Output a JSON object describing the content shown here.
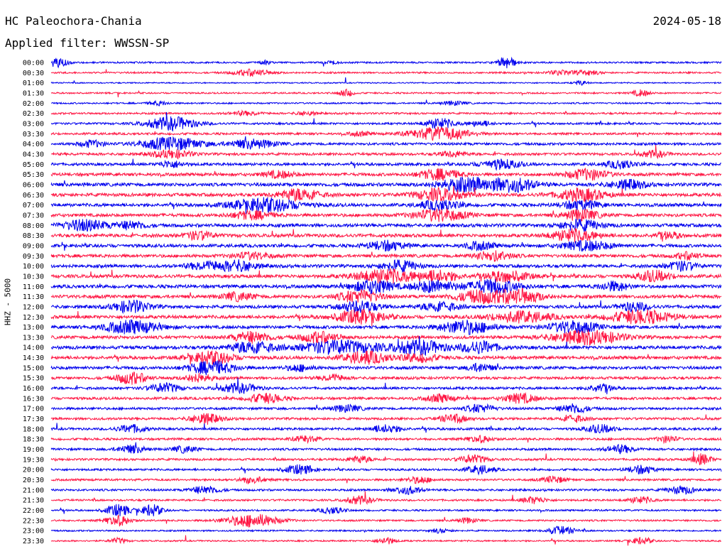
{
  "header": {
    "station": "HC Paleochora-Chania",
    "date": "2024-05-18",
    "filter_label": "Applied filter:",
    "filter_value": "WWSSN-SP"
  },
  "channel_label": "HHZ - 5000",
  "colors": {
    "odd_trace": "#0000ee",
    "even_trace": "#ff1744"
  },
  "chart_data": {
    "type": "line",
    "title": "HC Paleochora-Chania",
    "subtitle": "Applied filter: WWSSN-SP",
    "date": "2024-05-18",
    "ylabel": "HHZ - 5000",
    "xlabel": "",
    "legend": "none",
    "grid": false,
    "rows": [
      {
        "time": "00:00",
        "activity": 0.3,
        "events": [
          [
            0.01,
            0.7,
            10
          ],
          [
            0.68,
            1.0,
            8
          ],
          [
            0.32,
            0.3,
            5
          ],
          [
            0.42,
            0.3,
            5
          ]
        ]
      },
      {
        "time": "00:30",
        "activity": 0.3,
        "events": [
          [
            0.3,
            0.5,
            18
          ],
          [
            0.76,
            0.35,
            12
          ],
          [
            0.8,
            0.35,
            12
          ]
        ]
      },
      {
        "time": "01:00",
        "activity": 0.15,
        "events": [
          [
            0.79,
            0.35,
            6
          ]
        ]
      },
      {
        "time": "01:30",
        "activity": 0.25,
        "events": [
          [
            0.44,
            0.5,
            8
          ],
          [
            0.88,
            0.5,
            8
          ]
        ]
      },
      {
        "time": "02:00",
        "activity": 0.25,
        "events": [
          [
            0.16,
            0.3,
            10
          ],
          [
            0.6,
            0.3,
            12
          ]
        ]
      },
      {
        "time": "02:30",
        "activity": 0.35,
        "events": [
          [
            0.29,
            0.3,
            15
          ],
          [
            0.38,
            0.3,
            10
          ]
        ]
      },
      {
        "time": "03:00",
        "activity": 0.4,
        "events": [
          [
            0.18,
            1.0,
            25
          ],
          [
            0.58,
            0.8,
            14
          ],
          [
            0.64,
            0.4,
            12
          ]
        ]
      },
      {
        "time": "03:30",
        "activity": 0.45,
        "events": [
          [
            0.58,
            1.0,
            30
          ],
          [
            0.46,
            0.35,
            10
          ]
        ]
      },
      {
        "time": "04:00",
        "activity": 0.55,
        "events": [
          [
            0.18,
            1.0,
            30
          ],
          [
            0.3,
            0.7,
            22
          ],
          [
            0.06,
            0.5,
            12
          ]
        ]
      },
      {
        "time": "04:30",
        "activity": 0.55,
        "events": [
          [
            0.18,
            0.6,
            20
          ],
          [
            0.6,
            0.4,
            14
          ],
          [
            0.9,
            0.5,
            12
          ]
        ]
      },
      {
        "time": "05:00",
        "activity": 0.6,
        "events": [
          [
            0.67,
            0.7,
            20
          ],
          [
            0.85,
            0.6,
            14
          ],
          [
            0.18,
            0.5,
            12
          ]
        ]
      },
      {
        "time": "05:30",
        "activity": 0.7,
        "events": [
          [
            0.58,
            0.8,
            20
          ],
          [
            0.8,
            0.8,
            20
          ],
          [
            0.34,
            0.5,
            15
          ]
        ]
      },
      {
        "time": "06:00",
        "activity": 0.8,
        "events": [
          [
            0.62,
            1.0,
            28
          ],
          [
            0.69,
            1.0,
            22
          ],
          [
            0.86,
            0.7,
            18
          ]
        ]
      },
      {
        "time": "06:30",
        "activity": 0.8,
        "events": [
          [
            0.37,
            0.9,
            20
          ],
          [
            0.58,
            0.9,
            24
          ],
          [
            0.79,
            0.9,
            24
          ]
        ]
      },
      {
        "time": "07:00",
        "activity": 0.75,
        "events": [
          [
            0.32,
            1.0,
            35
          ],
          [
            0.58,
            0.7,
            20
          ],
          [
            0.79,
            0.7,
            18
          ]
        ]
      },
      {
        "time": "07:30",
        "activity": 0.75,
        "events": [
          [
            0.3,
            0.6,
            20
          ],
          [
            0.58,
            0.9,
            25
          ],
          [
            0.79,
            0.8,
            18
          ]
        ]
      },
      {
        "time": "08:00",
        "activity": 0.8,
        "events": [
          [
            0.05,
            0.8,
            22
          ],
          [
            0.12,
            0.6,
            14
          ],
          [
            0.79,
            0.8,
            20
          ]
        ]
      },
      {
        "time": "08:30",
        "activity": 0.8,
        "events": [
          [
            0.22,
            0.6,
            14
          ],
          [
            0.78,
            0.9,
            22
          ],
          [
            0.92,
            0.5,
            12
          ]
        ]
      },
      {
        "time": "09:00",
        "activity": 0.75,
        "events": [
          [
            0.5,
            0.7,
            18
          ],
          [
            0.64,
            0.6,
            14
          ],
          [
            0.8,
            0.7,
            24
          ]
        ]
      },
      {
        "time": "09:30",
        "activity": 0.75,
        "events": [
          [
            0.3,
            0.5,
            18
          ],
          [
            0.66,
            0.7,
            18
          ],
          [
            0.95,
            0.5,
            12
          ]
        ]
      },
      {
        "time": "10:00",
        "activity": 0.75,
        "events": [
          [
            0.23,
            0.6,
            18
          ],
          [
            0.28,
            0.8,
            18
          ],
          [
            0.52,
            0.8,
            18
          ],
          [
            0.94,
            0.7,
            14
          ]
        ]
      },
      {
        "time": "10:30",
        "activity": 0.8,
        "events": [
          [
            0.5,
            1.0,
            30
          ],
          [
            0.58,
            0.8,
            18
          ],
          [
            0.68,
            0.8,
            22
          ],
          [
            0.9,
            0.8,
            16
          ]
        ]
      },
      {
        "time": "11:00",
        "activity": 0.8,
        "events": [
          [
            0.48,
            1.0,
            20
          ],
          [
            0.57,
            0.9,
            20
          ],
          [
            0.66,
            1.0,
            26
          ],
          [
            0.84,
            0.7,
            14
          ]
        ]
      },
      {
        "time": "11:30",
        "activity": 0.8,
        "events": [
          [
            0.46,
            0.9,
            20
          ],
          [
            0.64,
            0.9,
            24
          ],
          [
            0.7,
            1.0,
            22
          ],
          [
            0.28,
            0.6,
            15
          ]
        ]
      },
      {
        "time": "12:00",
        "activity": 0.75,
        "events": [
          [
            0.12,
            0.9,
            18
          ],
          [
            0.46,
            0.9,
            18
          ],
          [
            0.58,
            0.7,
            18
          ],
          [
            0.87,
            0.7,
            14
          ]
        ]
      },
      {
        "time": "12:30",
        "activity": 0.8,
        "events": [
          [
            0.46,
            1.0,
            24
          ],
          [
            0.7,
            0.8,
            30
          ],
          [
            0.88,
            1.0,
            30
          ]
        ]
      },
      {
        "time": "13:00",
        "activity": 0.75,
        "events": [
          [
            0.12,
            1.0,
            26
          ],
          [
            0.62,
            1.0,
            26
          ],
          [
            0.78,
            0.9,
            24
          ]
        ]
      },
      {
        "time": "13:30",
        "activity": 0.75,
        "events": [
          [
            0.3,
            0.8,
            18
          ],
          [
            0.4,
            0.8,
            18
          ],
          [
            0.8,
            1.0,
            36
          ]
        ]
      },
      {
        "time": "14:00",
        "activity": 0.8,
        "events": [
          [
            0.3,
            0.9,
            22
          ],
          [
            0.43,
            1.0,
            38
          ],
          [
            0.55,
            1.0,
            26
          ],
          [
            0.64,
            0.9,
            18
          ]
        ]
      },
      {
        "time": "14:30",
        "activity": 0.75,
        "events": [
          [
            0.24,
            0.9,
            22
          ],
          [
            0.47,
            0.9,
            22
          ],
          [
            0.55,
            0.6,
            18
          ]
        ]
      },
      {
        "time": "15:00",
        "activity": 0.7,
        "events": [
          [
            0.24,
            1.0,
            22
          ],
          [
            0.37,
            0.5,
            12
          ],
          [
            0.64,
            0.6,
            12
          ]
        ]
      },
      {
        "time": "15:30",
        "activity": 0.6,
        "events": [
          [
            0.12,
            0.9,
            15
          ],
          [
            0.22,
            0.6,
            14
          ],
          [
            0.42,
            0.5,
            12
          ]
        ]
      },
      {
        "time": "16:00",
        "activity": 0.55,
        "events": [
          [
            0.17,
            0.7,
            15
          ],
          [
            0.28,
            0.7,
            18
          ],
          [
            0.82,
            0.6,
            12
          ]
        ]
      },
      {
        "time": "16:30",
        "activity": 0.55,
        "events": [
          [
            0.32,
            0.7,
            18
          ],
          [
            0.58,
            0.6,
            14
          ],
          [
            0.7,
            0.7,
            16
          ]
        ]
      },
      {
        "time": "17:00",
        "activity": 0.5,
        "events": [
          [
            0.44,
            0.5,
            15
          ],
          [
            0.64,
            0.6,
            14
          ],
          [
            0.78,
            0.7,
            14
          ]
        ]
      },
      {
        "time": "17:30",
        "activity": 0.5,
        "events": [
          [
            0.23,
            0.8,
            15
          ],
          [
            0.6,
            0.6,
            14
          ],
          [
            0.78,
            0.5,
            12
          ]
        ]
      },
      {
        "time": "18:00",
        "activity": 0.5,
        "events": [
          [
            0.12,
            0.6,
            14
          ],
          [
            0.5,
            0.6,
            14
          ],
          [
            0.82,
            0.6,
            14
          ]
        ]
      },
      {
        "time": "18:30",
        "activity": 0.45,
        "events": [
          [
            0.38,
            0.5,
            12
          ],
          [
            0.64,
            0.5,
            12
          ],
          [
            0.92,
            0.5,
            10
          ]
        ]
      },
      {
        "time": "19:00",
        "activity": 0.45,
        "events": [
          [
            0.12,
            0.6,
            14
          ],
          [
            0.2,
            0.5,
            12
          ],
          [
            0.85,
            0.6,
            14
          ]
        ]
      },
      {
        "time": "19:30",
        "activity": 0.45,
        "events": [
          [
            0.46,
            0.5,
            12
          ],
          [
            0.63,
            0.6,
            14
          ],
          [
            0.97,
            0.8,
            10
          ]
        ]
      },
      {
        "time": "20:00",
        "activity": 0.4,
        "events": [
          [
            0.37,
            0.7,
            14
          ],
          [
            0.64,
            0.6,
            14
          ],
          [
            0.88,
            0.6,
            14
          ]
        ]
      },
      {
        "time": "20:30",
        "activity": 0.4,
        "events": [
          [
            0.3,
            0.5,
            12
          ],
          [
            0.55,
            0.5,
            12
          ],
          [
            0.75,
            0.5,
            12
          ]
        ]
      },
      {
        "time": "21:00",
        "activity": 0.4,
        "events": [
          [
            0.23,
            0.6,
            14
          ],
          [
            0.53,
            0.6,
            14
          ],
          [
            0.94,
            0.6,
            14
          ]
        ]
      },
      {
        "time": "21:30",
        "activity": 0.35,
        "events": [
          [
            0.46,
            0.6,
            14
          ],
          [
            0.72,
            0.5,
            12
          ],
          [
            0.88,
            0.5,
            12
          ]
        ]
      },
      {
        "time": "22:00",
        "activity": 0.3,
        "events": [
          [
            0.1,
            0.9,
            12
          ],
          [
            0.15,
            0.9,
            10
          ],
          [
            0.42,
            0.5,
            12
          ]
        ]
      },
      {
        "time": "22:30",
        "activity": 0.3,
        "events": [
          [
            0.1,
            0.8,
            12
          ],
          [
            0.3,
            1.0,
            26
          ],
          [
            0.62,
            0.4,
            10
          ]
        ]
      },
      {
        "time": "23:00",
        "activity": 0.25,
        "events": [
          [
            0.76,
            0.6,
            14
          ],
          [
            0.58,
            0.3,
            10
          ]
        ]
      },
      {
        "time": "23:30",
        "activity": 0.25,
        "events": [
          [
            0.1,
            0.4,
            8
          ],
          [
            0.5,
            0.5,
            10
          ],
          [
            0.88,
            0.5,
            10
          ]
        ]
      }
    ]
  }
}
